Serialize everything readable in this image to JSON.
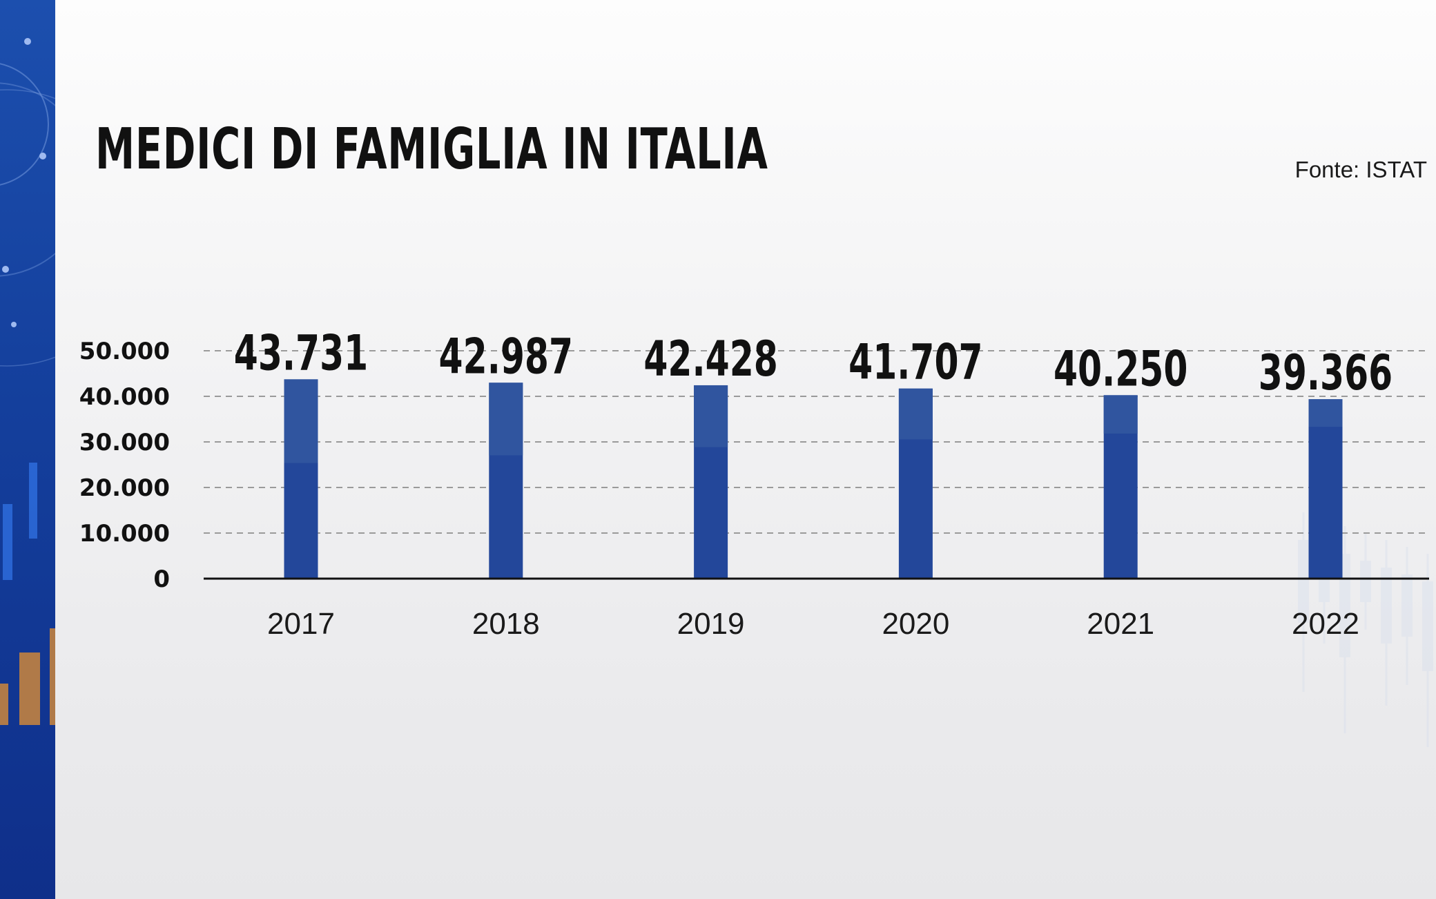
{
  "title": "MEDICI DI FAMIGLIA IN ITALIA",
  "source": "Fonte: ISTAT",
  "colors": {
    "bar_dark": "#23479a",
    "bar_light": "#30559f",
    "strip": "#143f9c",
    "gridline": "#9a9a9a"
  },
  "chart_data": {
    "type": "bar",
    "title": "MEDICI DI FAMIGLIA IN ITALIA",
    "xlabel": "",
    "ylabel": "",
    "categories": [
      "2017",
      "2018",
      "2019",
      "2020",
      "2021",
      "2022"
    ],
    "values": [
      43731,
      42987,
      42428,
      41707,
      40250,
      39366
    ],
    "value_labels": [
      "43.731",
      "42.987",
      "42.428",
      "41.707",
      "40.250",
      "39.366"
    ],
    "y_ticks": [
      0,
      10000,
      20000,
      30000,
      40000,
      50000
    ],
    "y_tick_labels": [
      "0",
      "10.000",
      "20.000",
      "30.000",
      "40.000",
      "50.000"
    ],
    "ylim": [
      0,
      50000
    ],
    "grid": true,
    "legend": "none"
  }
}
